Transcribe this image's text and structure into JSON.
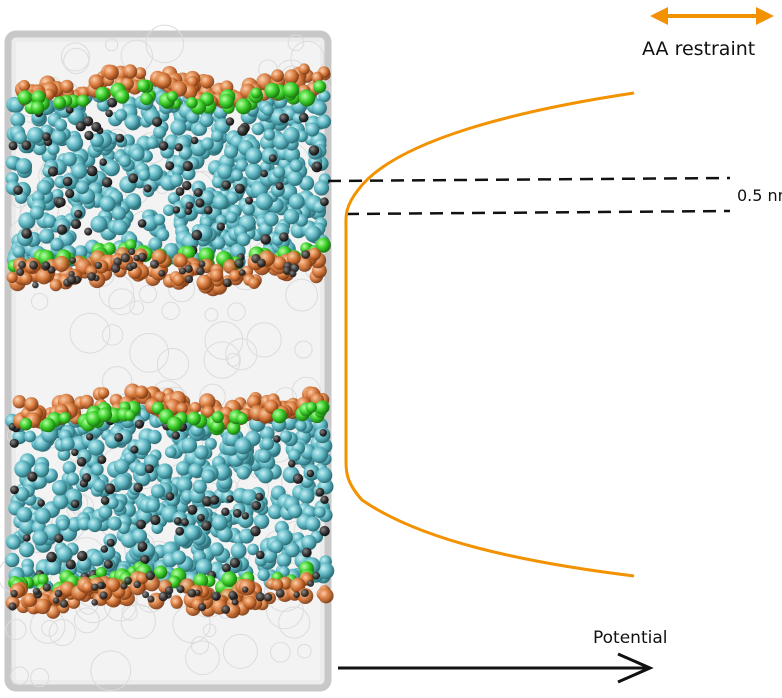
{
  "legend": {
    "label": "AA restraint",
    "arrow_color": "#f39200"
  },
  "distance_label": "0.5 nm",
  "potential_label": "Potential",
  "colors": {
    "restraint_curve": "#f39200",
    "teal_beads": "#5fb8c4",
    "green_beads": "#3ccf2a",
    "orange_beads": "#d8783a",
    "dark_beads": "#333333",
    "water_box": "#d4d4d4"
  },
  "icons": {
    "legend_arrow": "double-arrow-icon",
    "axis_arrow": "right-arrow-icon"
  }
}
